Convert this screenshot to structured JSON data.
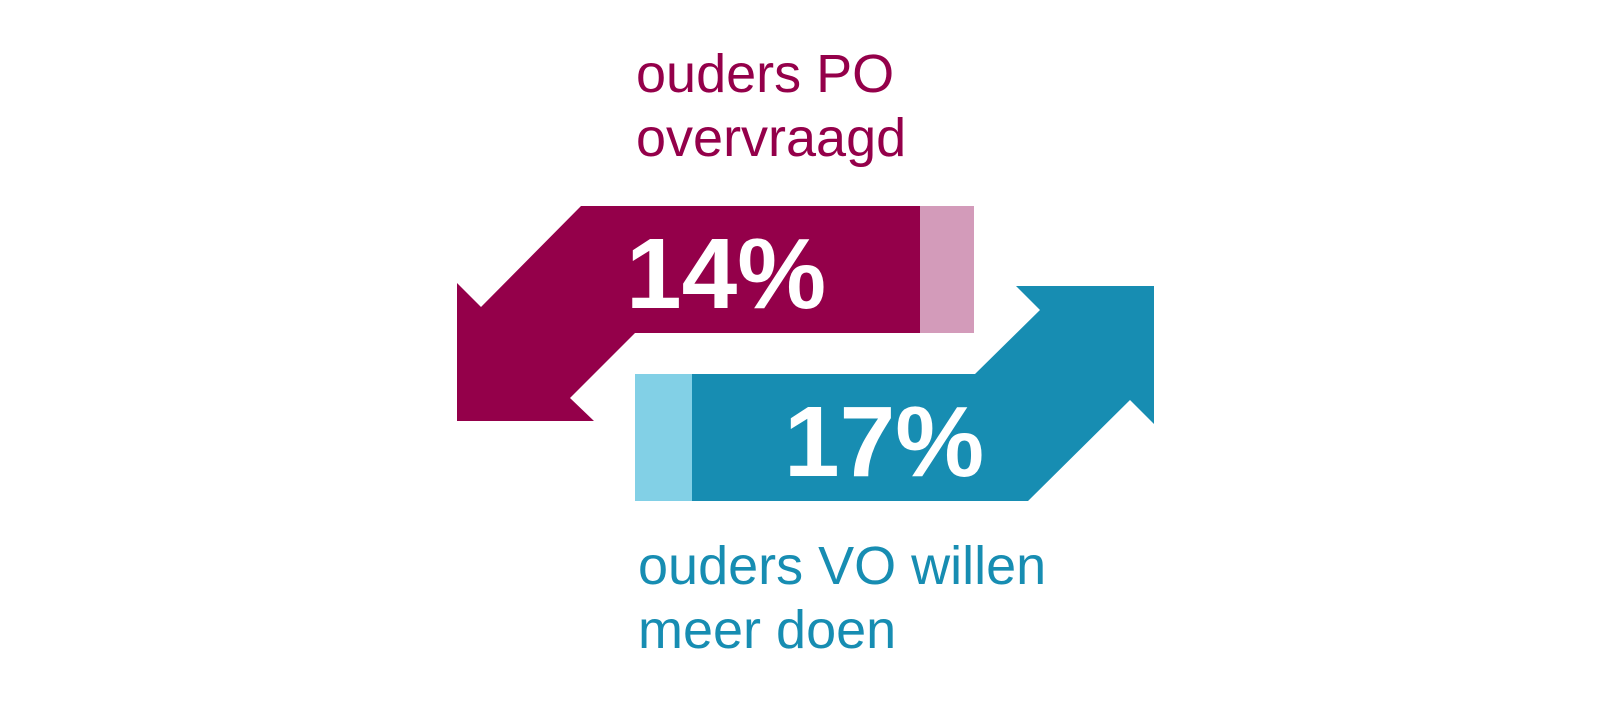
{
  "colors": {
    "po_dark": "#94004A",
    "po_light": "#D39BBA",
    "vo_dark": "#178DB2",
    "vo_light": "#82D0E6",
    "text_on_shape": "#FFFFFF"
  },
  "po": {
    "caption_lines": [
      "ouders PO",
      "overvraagd"
    ],
    "percent_label": "14%",
    "share": 0.14,
    "arrow_direction": "down-left"
  },
  "vo": {
    "caption_lines": [
      "ouders VO willen",
      "meer doen"
    ],
    "percent_label": "17%",
    "share": 0.17,
    "arrow_direction": "up-right"
  }
}
